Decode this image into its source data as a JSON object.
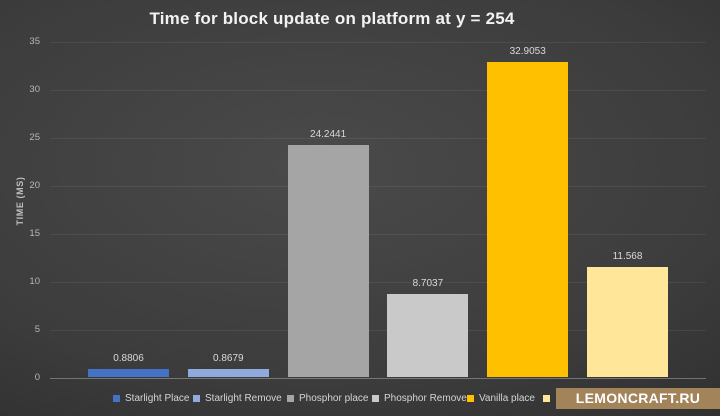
{
  "watermark": {
    "text": "LEMONCRAFT.RU",
    "background": "#A3835A",
    "text_color": "#FFFFFF"
  },
  "chart_data": {
    "type": "bar",
    "title": "Time for block update on platform at y = 254",
    "xlabel": "",
    "ylabel": "TIME (MS)",
    "ylim": [
      0,
      35
    ],
    "yticks": [
      0,
      5,
      10,
      15,
      20,
      25,
      30,
      35
    ],
    "grid": true,
    "legend_position": "bottom",
    "bars": [
      {
        "name": "Starlight Place",
        "value": 0.8806,
        "label": "0.8806",
        "color": "#4472C4"
      },
      {
        "name": "Starlight Remove",
        "value": 0.8679,
        "label": "0.8679",
        "color": "#8FAADC"
      },
      {
        "name": "Phosphor place",
        "value": 24.2441,
        "label": "24.2441",
        "color": "#A5A5A5"
      },
      {
        "name": "Phosphor Remove",
        "value": 8.7037,
        "label": "8.7037",
        "color": "#C9C9C9"
      },
      {
        "name": "Vanilla place",
        "value": 32.9053,
        "label": "32.9053",
        "color": "#FFC000"
      },
      {
        "name": "",
        "value": 11.568,
        "label": "11.568",
        "color": "#FFE699"
      }
    ],
    "legend": [
      {
        "label": "Starlight Place",
        "color": "#4472C4"
      },
      {
        "label": "Starlight Remove",
        "color": "#8FAADC"
      },
      {
        "label": "Phosphor place",
        "color": "#A5A5A5"
      },
      {
        "label": "Phosphor Remove",
        "color": "#C9C9C9"
      },
      {
        "label": "Vanilla place",
        "color": "#FFC000"
      },
      {
        "label": "",
        "color": "#FFE699"
      }
    ],
    "title_color": "#F2F2F2",
    "axis_text_color": "#BFBFBF",
    "data_label_color": "#D9D9D9"
  }
}
